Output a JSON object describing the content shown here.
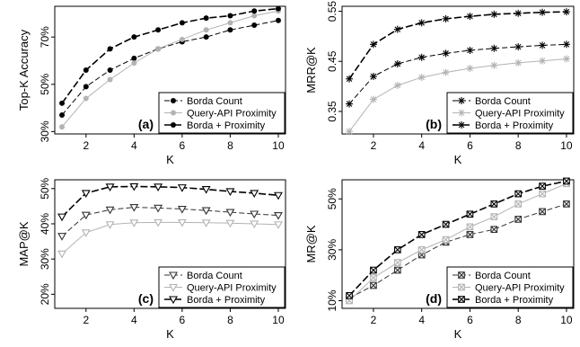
{
  "colors": {
    "black": "#000000",
    "gray": "#b3b3b3",
    "dark": "#333333"
  },
  "chart_data": [
    {
      "id": "a",
      "type": "line",
      "panel_label": "(a)",
      "xlabel": "K",
      "ylabel": "Top-K Accuracy",
      "x": [
        1,
        2,
        3,
        4,
        5,
        6,
        7,
        8,
        9,
        10
      ],
      "xticks": [
        2,
        4,
        6,
        8,
        10
      ],
      "xlim": [
        0.7,
        10.3
      ],
      "ylim": [
        0.29,
        0.83
      ],
      "yticks": [
        0.3,
        0.5,
        0.7
      ],
      "ytick_labels": [
        "30%",
        "50%",
        "70%"
      ],
      "legend_position": "bottom-right",
      "series": [
        {
          "name": "Borda Count",
          "marker": "dot",
          "color": "#000000",
          "dash": "6,3",
          "values": [
            0.37,
            0.49,
            0.56,
            0.61,
            0.65,
            0.68,
            0.7,
            0.73,
            0.75,
            0.77
          ]
        },
        {
          "name": "Query-API Proximity",
          "marker": "dot",
          "color": "#b3b3b3",
          "dash": "",
          "values": [
            0.32,
            0.44,
            0.52,
            0.59,
            0.65,
            0.69,
            0.73,
            0.76,
            0.79,
            0.81
          ]
        },
        {
          "name": "Borda + Proximity",
          "marker": "dot",
          "color": "#000000",
          "dash": "8,3",
          "width": 1.6,
          "values": [
            0.42,
            0.56,
            0.65,
            0.7,
            0.73,
            0.76,
            0.78,
            0.79,
            0.81,
            0.82
          ]
        }
      ]
    },
    {
      "id": "b",
      "type": "line",
      "panel_label": "(b)",
      "xlabel": "K",
      "ylabel": "MRR@K",
      "x": [
        1,
        2,
        3,
        4,
        5,
        6,
        7,
        8,
        9,
        10
      ],
      "xticks": [
        2,
        4,
        6,
        8,
        10
      ],
      "xlim": [
        0.7,
        10.3
      ],
      "ylim": [
        0.305,
        0.56
      ],
      "yticks": [
        0.35,
        0.45,
        0.55
      ],
      "ytick_labels": [
        "0.35",
        "0.45",
        "0.55"
      ],
      "legend_position": "bottom-right",
      "series": [
        {
          "name": "Borda Count",
          "marker": "asterisk",
          "color": "#000000",
          "dash": "6,3",
          "values": [
            0.365,
            0.42,
            0.445,
            0.458,
            0.466,
            0.472,
            0.476,
            0.479,
            0.482,
            0.484
          ]
        },
        {
          "name": "Query-API Proximity",
          "marker": "asterisk",
          "color": "#b3b3b3",
          "dash": "",
          "values": [
            0.31,
            0.374,
            0.402,
            0.418,
            0.428,
            0.436,
            0.442,
            0.447,
            0.451,
            0.455
          ]
        },
        {
          "name": "Borda + Proximity",
          "marker": "asterisk",
          "color": "#000000",
          "dash": "8,3",
          "width": 1.6,
          "values": [
            0.415,
            0.484,
            0.514,
            0.527,
            0.535,
            0.54,
            0.544,
            0.546,
            0.548,
            0.549
          ]
        }
      ]
    },
    {
      "id": "c",
      "type": "line",
      "panel_label": "(c)",
      "xlabel": "K",
      "ylabel": "MAP@K",
      "x": [
        1,
        2,
        3,
        4,
        5,
        6,
        7,
        8,
        9,
        10
      ],
      "xticks": [
        2,
        4,
        6,
        8,
        10
      ],
      "xlim": [
        0.7,
        10.3
      ],
      "ylim": [
        0.16,
        0.525
      ],
      "yticks": [
        0.2,
        0.3,
        0.4,
        0.5
      ],
      "ytick_labels": [
        "20%",
        "30%",
        "40%",
        "50%"
      ],
      "legend_position": "bottom-right",
      "series": [
        {
          "name": "Borda Count",
          "marker": "triangle-down",
          "color": "#333333",
          "dash": "6,3",
          "values": [
            0.365,
            0.425,
            0.44,
            0.447,
            0.445,
            0.442,
            0.438,
            0.433,
            0.428,
            0.424
          ]
        },
        {
          "name": "Query-API Proximity",
          "marker": "triangle-down",
          "color": "#b3b3b3",
          "dash": "",
          "values": [
            0.315,
            0.375,
            0.398,
            0.403,
            0.404,
            0.404,
            0.403,
            0.402,
            0.4,
            0.398
          ]
        },
        {
          "name": "Borda + Proximity",
          "marker": "triangle-down",
          "color": "#000000",
          "dash": "8,3",
          "width": 1.6,
          "values": [
            0.42,
            0.487,
            0.505,
            0.506,
            0.505,
            0.503,
            0.498,
            0.492,
            0.487,
            0.481
          ]
        }
      ]
    },
    {
      "id": "d",
      "type": "line",
      "panel_label": "(d)",
      "xlabel": "K",
      "ylabel": "MR@K",
      "x": [
        1,
        2,
        3,
        4,
        5,
        6,
        7,
        8,
        9,
        10
      ],
      "xticks": [
        2,
        4,
        6,
        8,
        10
      ],
      "xlim": [
        0.7,
        10.3
      ],
      "ylim": [
        0.07,
        0.575
      ],
      "yticks": [
        0.1,
        0.3,
        0.5
      ],
      "ytick_labels": [
        "10%",
        "30%",
        "50%"
      ],
      "legend_position": "bottom-right",
      "series": [
        {
          "name": "Borda Count",
          "marker": "square-x",
          "color": "#333333",
          "dash": "6,3",
          "values": [
            0.11,
            0.16,
            0.22,
            0.28,
            0.33,
            0.36,
            0.38,
            0.42,
            0.45,
            0.48
          ]
        },
        {
          "name": "Query-API Proximity",
          "marker": "square-x",
          "color": "#b3b3b3",
          "dash": "",
          "values": [
            0.1,
            0.19,
            0.25,
            0.3,
            0.34,
            0.39,
            0.43,
            0.48,
            0.52,
            0.56
          ]
        },
        {
          "name": "Borda + Proximity",
          "marker": "square-x",
          "color": "#000000",
          "dash": "8,3",
          "width": 1.6,
          "values": [
            0.12,
            0.22,
            0.3,
            0.36,
            0.4,
            0.44,
            0.48,
            0.52,
            0.55,
            0.57
          ]
        }
      ]
    }
  ]
}
